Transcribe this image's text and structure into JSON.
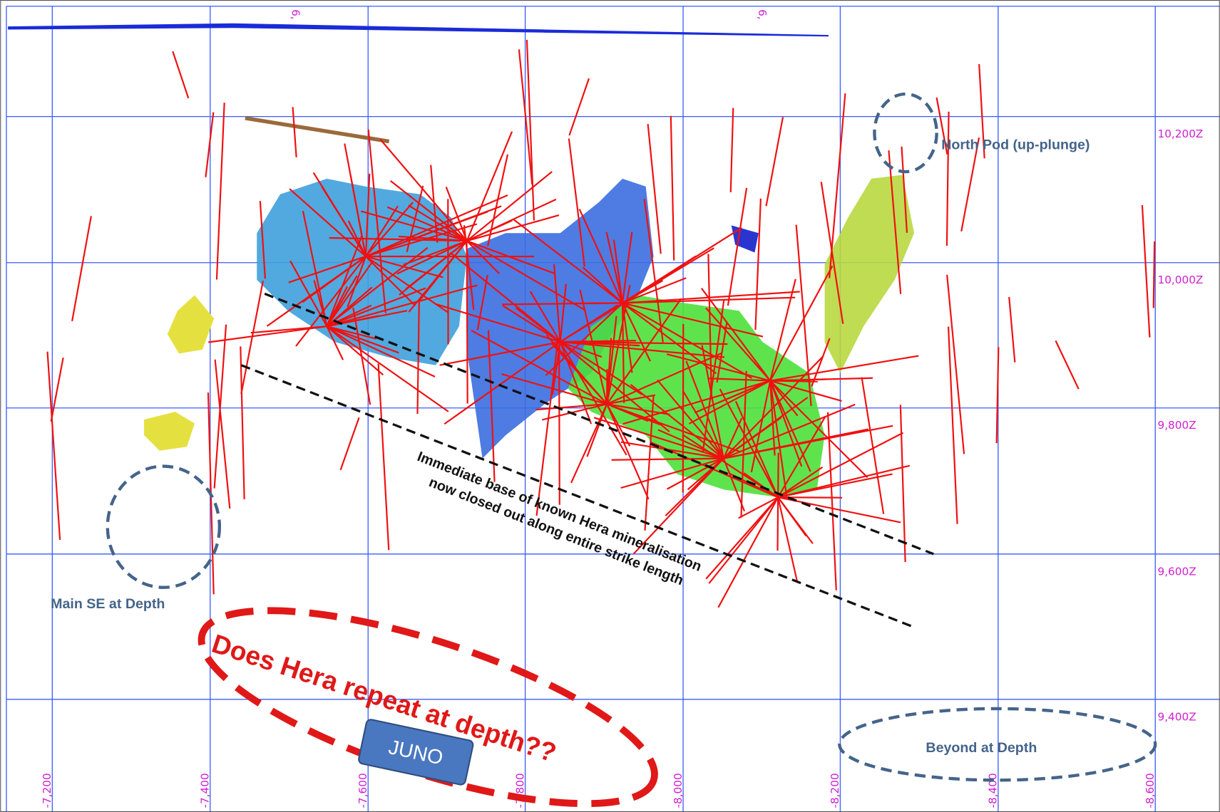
{
  "section": {
    "top_labels": [
      "6,",
      "6,"
    ],
    "elevation_labels": [
      "10,200Z",
      "10,000Z",
      "9,800Z",
      "9,600Z",
      "9,400Z"
    ],
    "easting_labels": [
      "-7,200",
      "-7,400",
      "-7,600",
      "-7,800",
      "-8,000",
      "-8,200",
      "-8,400",
      "-8,600"
    ],
    "annotations": {
      "north_pod": "North Pod (up-plunge)",
      "main_se": "Main SE at Depth",
      "base_line_1": "Immediate base of known Hera mineralisation",
      "base_line_2": "now closed out along entire strike length",
      "question": "Does Hera repeat at depth??",
      "juno": "JUNO",
      "beyond": "Beyond at Depth"
    }
  }
}
